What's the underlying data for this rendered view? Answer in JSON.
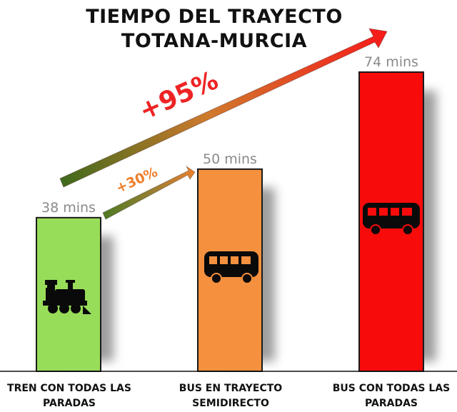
{
  "chart_data": {
    "type": "bar",
    "title_lines": [
      "TIEMPO DEL TRAYECTO",
      "TOTANA-MURCIA"
    ],
    "categories": [
      [
        "TREN CON TODAS LAS",
        "PARADAS"
      ],
      [
        "BUS EN TRAYECTO",
        "SEMIDIRECTO"
      ],
      [
        "BUS CON TODAS LAS",
        "PARADAS"
      ]
    ],
    "values": [
      38,
      50,
      74
    ],
    "value_labels": [
      "38 mins",
      "50 mins",
      "74 mins"
    ],
    "bar_colors": [
      "#98dd5a",
      "#f5903e",
      "#f80b0b"
    ],
    "bar_icons": [
      "train-icon",
      "bus-icon",
      "bus-icon"
    ],
    "ylim": [
      0,
      74
    ],
    "grid": false,
    "annotations": [
      {
        "text": "+30%",
        "color": "#ee7f2d",
        "from_category": 0,
        "to_category": 1
      },
      {
        "text": "+95%",
        "color": "#ee2424",
        "from_category": 0,
        "to_category": 2
      }
    ]
  }
}
